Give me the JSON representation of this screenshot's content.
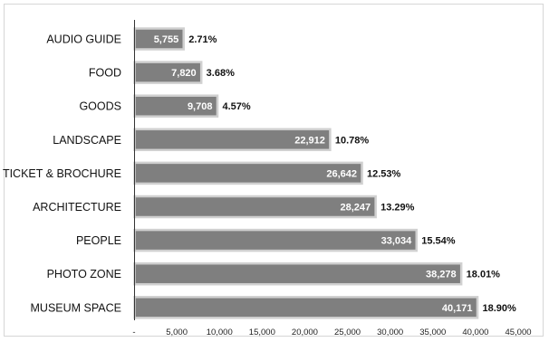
{
  "chart_data": {
    "type": "bar",
    "orientation": "horizontal",
    "title": "",
    "xlabel": "",
    "ylabel": "",
    "categories": [
      "AUDIO GUIDE",
      "FOOD",
      "GOODS",
      "LANDSCAPE",
      "TICKET & BROCHURE",
      "ARCHITECTURE",
      "PEOPLE",
      "PHOTO ZONE",
      "MUSEUM SPACE"
    ],
    "values": [
      5755,
      7820,
      9708,
      22912,
      26642,
      28247,
      33034,
      38278,
      40171
    ],
    "value_labels": [
      "5,755",
      "7,820",
      "9,708",
      "22,912",
      "26,642",
      "28,247",
      "33,034",
      "38,278",
      "40,171"
    ],
    "percent_labels": [
      "2.71%",
      "3.68%",
      "4.57%",
      "10.78%",
      "12.53%",
      "13.29%",
      "15.54%",
      "18.01%",
      "18.90%"
    ],
    "xlim": [
      0,
      45000
    ],
    "x_ticks": [
      0,
      5000,
      10000,
      15000,
      20000,
      25000,
      30000,
      35000,
      40000,
      45000
    ],
    "x_tick_labels": [
      "-",
      "5,000",
      "10,000",
      "15,000",
      "20,000",
      "25,000",
      "30,000",
      "35,000",
      "40,000",
      "45,000"
    ],
    "grid": false,
    "legend": "none",
    "bar_color": "#7f7f7f",
    "bar_border_color": "#d0d0d0"
  }
}
